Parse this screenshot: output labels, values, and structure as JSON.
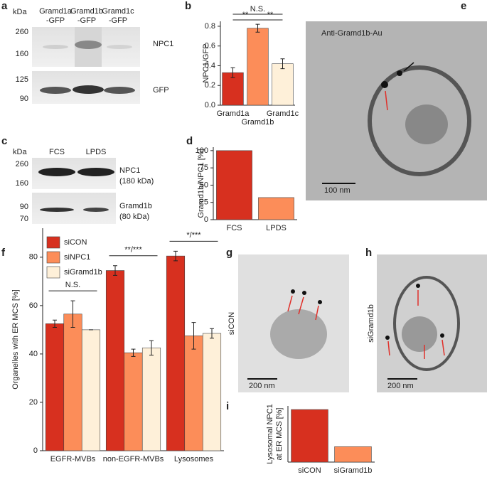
{
  "figure": {
    "panel_letters": [
      "a",
      "b",
      "c",
      "d",
      "e",
      "f",
      "g",
      "h",
      "i"
    ],
    "blot_a": {
      "kda": "kDa",
      "lanes": [
        [
          "Gramd1a",
          "-GFP"
        ],
        [
          "Gramd1b",
          "-GFP"
        ],
        [
          "Gramd1c",
          "-GFP"
        ]
      ],
      "markers": [
        "260",
        "160",
        "125",
        "90"
      ],
      "bands": [
        "NPC1",
        "GFP"
      ]
    },
    "blot_c": {
      "kda": "kDa",
      "lanes": [
        "FCS",
        "LPDS"
      ],
      "markers": [
        "260",
        "160",
        "90",
        "70"
      ],
      "bands": [
        [
          "NPC1",
          "(180 kDa)"
        ],
        [
          "Gramd1b",
          "(80 kDa)"
        ]
      ]
    },
    "em_e": {
      "label": "Anti-Gramd1b-Au",
      "scale": "100 nm"
    },
    "em_g": {
      "label": "siCON",
      "scale": "200 nm"
    },
    "em_h": {
      "label": "siGramd1b",
      "scale": "200 nm"
    }
  },
  "chart_data": [
    {
      "type": "bar",
      "ylabel": "NPC1/GFP",
      "categories": [
        "Gramd1a",
        "Gramd1b",
        "Gramd1c"
      ],
      "values": [
        0.33,
        0.78,
        0.42
      ],
      "errors": [
        0.05,
        0.04,
        0.05
      ],
      "colors": [
        "#d7301f",
        "#fc8d59",
        "#fef0d9"
      ],
      "ylim": [
        0,
        0.85
      ],
      "yticks": [
        {
          "value": 0,
          "label": "0.0"
        },
        0.2,
        0.4,
        0.6,
        0.8
      ],
      "annotations": [
        "N.S.",
        "**",
        "**"
      ]
    },
    {
      "type": "bar",
      "ylabel": "Gramd1b/NPC1 [%]",
      "categories": [
        "FCS",
        "LPDS"
      ],
      "values": [
        100,
        32
      ],
      "colors": [
        "#d7301f",
        "#fc8d59"
      ],
      "ylim": [
        0,
        105
      ],
      "yticks": [
        0,
        25,
        50,
        75,
        100
      ]
    },
    {
      "type": "bar",
      "ylabel": "Organelles with ER MCS [%]",
      "categories": [
        "EGFR-MVBs",
        "non-EGFR-MVBs",
        "Lysosomes"
      ],
      "series": [
        {
          "name": "siCON",
          "color": "#d7301f",
          "values": [
            52.5,
            74.5,
            80.5
          ],
          "errors": [
            1.5,
            2,
            2
          ]
        },
        {
          "name": "siNPC1",
          "color": "#fc8d59",
          "values": [
            56.5,
            40.5,
            47.5
          ],
          "errors": [
            5.5,
            1.5,
            5.5
          ]
        },
        {
          "name": "siGramd1b",
          "color": "#fef0d9",
          "values": [
            50,
            42.5,
            48.5
          ],
          "errors": [
            0,
            3,
            2
          ]
        }
      ],
      "legend": "upper left",
      "ylim": [
        0,
        92
      ],
      "yticks": [
        0,
        20,
        40,
        60,
        80
      ],
      "annotations": [
        "N.S.",
        "**/***",
        "*/***"
      ]
    },
    {
      "type": "bar",
      "ylabel": [
        "Lysosomal NPC1",
        "at ER MCS [%]"
      ],
      "categories": [
        "siCON",
        "siGramd1b"
      ],
      "values": [
        58,
        17
      ],
      "colors": [
        "#d7301f",
        "#fc8d59"
      ],
      "ylim": [
        0,
        62
      ]
    }
  ]
}
